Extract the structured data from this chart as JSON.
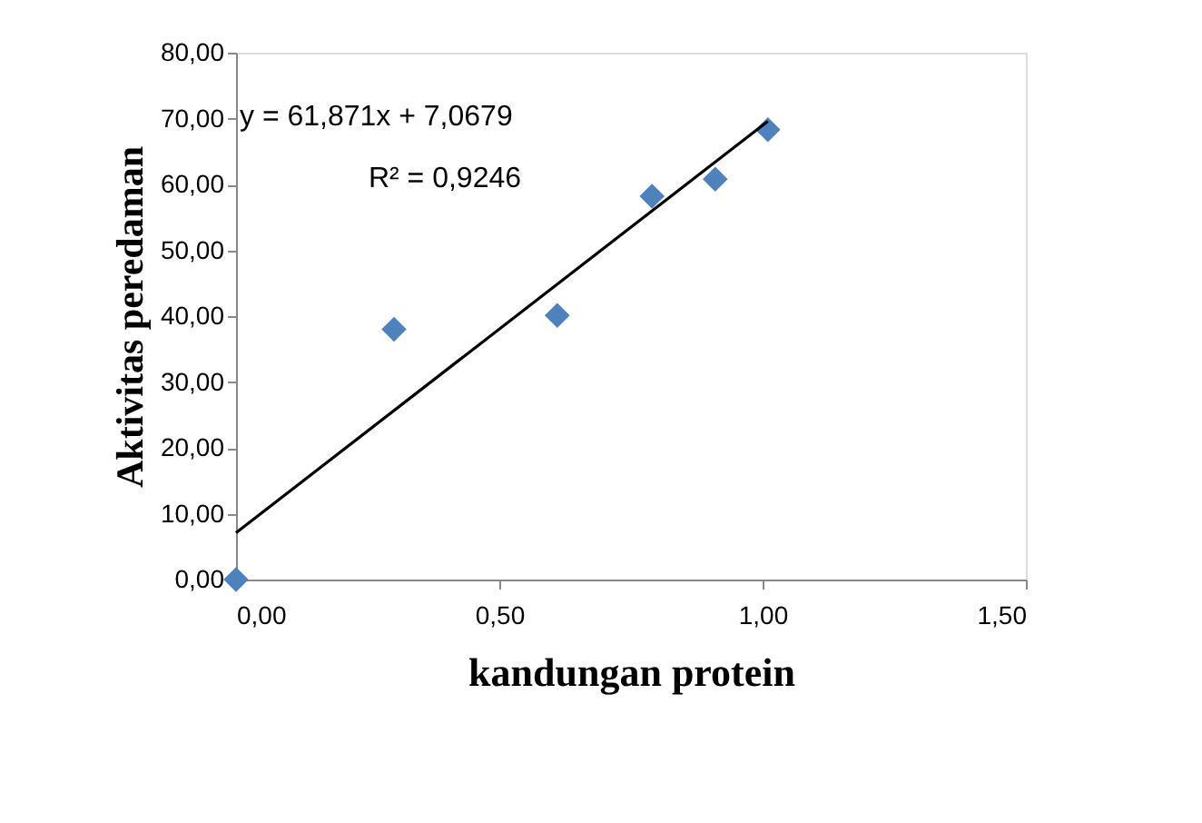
{
  "chart_data": {
    "type": "scatter",
    "xlabel": "kandungan protein",
    "ylabel": "Aktivitas peredaman",
    "x": [
      0.0,
      0.3,
      0.61,
      0.79,
      0.91,
      1.01
    ],
    "series": [
      {
        "color": "#4f81bd",
        "values": [
          0.0,
          38.0,
          40.1,
          58.2,
          60.8,
          68.3
        ],
        "marker": "diamond"
      },
      {
        "type": "line",
        "color": "#000000",
        "x": [
          0.0,
          1.01
        ],
        "values": [
          7.1,
          69.6
        ],
        "marker": "none",
        "line_style": "solid"
      }
    ],
    "xlim": [
      0,
      1.5
    ],
    "ylim": [
      0,
      80
    ],
    "xticks": [
      {
        "value": 0,
        "label": "0,00"
      },
      {
        "value": 0.5,
        "label": "0,50"
      },
      {
        "value": 1.0,
        "label": "1,00"
      },
      {
        "value": 1.5,
        "label": "1,50"
      }
    ],
    "yticks": [
      {
        "value": 0,
        "label": "0,00"
      },
      {
        "value": 10,
        "label": "10,00"
      },
      {
        "value": 20,
        "label": "20,00"
      },
      {
        "value": 30,
        "label": "30,00"
      },
      {
        "value": 40,
        "label": "40,00"
      },
      {
        "value": 50,
        "label": "50,00"
      },
      {
        "value": 60,
        "label": "60,00"
      },
      {
        "value": 70,
        "label": "70,00"
      },
      {
        "value": 80,
        "label": "80,00"
      }
    ],
    "annotations": [
      "y = 61,871x + 7,0679",
      "R² = 0,9246"
    ],
    "grid": false
  }
}
